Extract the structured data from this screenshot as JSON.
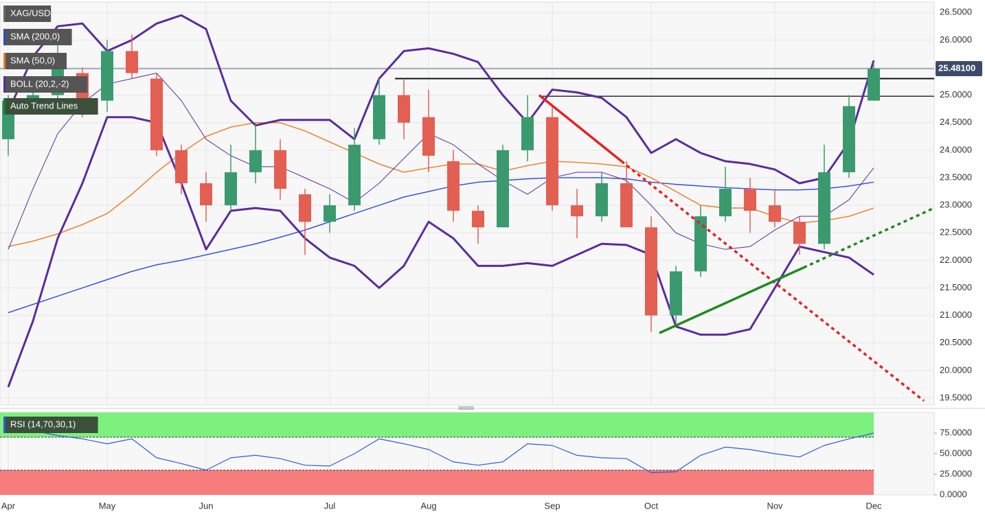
{
  "chart_data": {
    "type": "candlestick",
    "categories": [
      "Apr",
      null,
      null,
      null,
      "May",
      null,
      null,
      null,
      "Jun",
      null,
      null,
      null,
      null,
      "Jul",
      null,
      null,
      null,
      "Aug",
      null,
      null,
      null,
      null,
      "Sep",
      null,
      null,
      null,
      "Oct",
      null,
      null,
      null,
      null,
      "Nov",
      null,
      null,
      null,
      "Dec"
    ],
    "candles": {
      "name": "XAG/USD",
      "up_color": "#3a9a6e",
      "down_color": "#e35f52",
      "open": [
        24.2,
        24.9,
        25.0,
        25.4,
        24.9,
        25.8,
        25.3,
        24.0,
        23.4,
        23.0,
        23.6,
        24.0,
        23.2,
        22.7,
        23.0,
        24.2,
        25.0,
        24.6,
        23.8,
        22.9,
        22.6,
        24.0,
        24.6,
        23.0,
        22.8,
        23.4,
        22.6,
        21.0,
        21.8,
        22.8,
        23.3,
        23.0,
        22.7,
        22.3,
        23.6,
        24.9
      ],
      "high": [
        25.0,
        25.2,
        25.9,
        25.5,
        26.0,
        26.1,
        25.4,
        24.1,
        23.6,
        24.1,
        24.5,
        24.2,
        23.3,
        23.2,
        24.4,
        25.3,
        25.3,
        25.1,
        24.0,
        23.0,
        24.1,
        25.0,
        24.8,
        23.3,
        23.6,
        23.8,
        22.8,
        21.9,
        23.0,
        23.7,
        23.5,
        23.3,
        22.8,
        24.1,
        25.0,
        25.6
      ],
      "low": [
        23.9,
        24.7,
        24.8,
        24.6,
        24.7,
        25.3,
        23.9,
        23.2,
        22.7,
        22.9,
        23.4,
        23.1,
        22.1,
        22.5,
        22.9,
        24.1,
        24.2,
        23.6,
        22.7,
        22.3,
        22.6,
        23.8,
        22.9,
        22.4,
        22.7,
        22.7,
        20.7,
        20.8,
        21.7,
        22.7,
        22.5,
        22.6,
        22.1,
        22.2,
        23.5,
        24.9
      ],
      "close": [
        24.9,
        25.0,
        25.6,
        24.9,
        25.8,
        25.4,
        24.0,
        23.4,
        23.0,
        23.6,
        24.0,
        23.3,
        22.7,
        23.0,
        24.1,
        25.0,
        24.5,
        23.9,
        22.9,
        22.6,
        24.0,
        24.6,
        23.0,
        22.8,
        23.4,
        22.6,
        21.0,
        21.8,
        22.8,
        23.3,
        22.9,
        22.7,
        22.3,
        23.6,
        24.8,
        25.48
      ]
    },
    "lines": [
      {
        "name": "SMA (200,0)",
        "color": "#2846e8",
        "values": [
          21.05,
          21.2,
          21.35,
          21.5,
          21.65,
          21.8,
          21.92,
          22.0,
          22.1,
          22.2,
          22.3,
          22.42,
          22.55,
          22.7,
          22.85,
          23.0,
          23.15,
          23.25,
          23.35,
          23.42,
          23.45,
          23.48,
          23.5,
          23.5,
          23.5,
          23.48,
          23.42,
          23.38,
          23.35,
          23.32,
          23.3,
          23.28,
          23.28,
          23.3,
          23.35,
          23.42
        ]
      },
      {
        "name": "SMA (50,0)",
        "color": "#f07a1e",
        "values": [
          22.25,
          22.35,
          22.48,
          22.65,
          22.85,
          23.2,
          23.6,
          23.95,
          24.25,
          24.42,
          24.5,
          24.5,
          24.35,
          24.15,
          23.95,
          23.75,
          23.6,
          23.68,
          23.75,
          23.75,
          23.62,
          23.72,
          23.8,
          23.78,
          23.75,
          23.7,
          23.5,
          23.25,
          23.0,
          22.95,
          22.95,
          22.8,
          22.68,
          22.72,
          22.8,
          22.95
        ]
      }
    ],
    "bollinger": {
      "name": "BOLL (20,2,-2)",
      "color": "#5b2a9e",
      "upper": [
        24.7,
        25.7,
        26.25,
        26.3,
        25.8,
        26.0,
        26.3,
        26.45,
        26.2,
        24.9,
        24.45,
        24.55,
        24.55,
        24.55,
        24.2,
        25.3,
        25.8,
        25.85,
        25.75,
        25.6,
        25.0,
        24.5,
        25.1,
        25.05,
        24.95,
        24.6,
        23.95,
        24.2,
        23.95,
        23.8,
        23.75,
        23.65,
        23.4,
        23.5,
        24.15,
        25.63
      ],
      "middle": [
        22.2,
        23.3,
        24.3,
        24.85,
        25.2,
        25.3,
        25.4,
        24.9,
        24.2,
        23.9,
        23.7,
        23.7,
        23.5,
        23.3,
        23.05,
        23.4,
        23.85,
        24.3,
        24.1,
        23.75,
        23.45,
        23.2,
        23.5,
        23.6,
        23.6,
        23.45,
        23.0,
        22.5,
        22.3,
        22.2,
        22.25,
        22.55,
        22.8,
        22.8,
        23.1,
        23.68
      ],
      "lower": [
        19.7,
        20.9,
        22.4,
        23.4,
        24.6,
        24.6,
        24.5,
        23.4,
        22.2,
        22.9,
        22.95,
        22.9,
        22.4,
        22.05,
        21.9,
        21.5,
        21.9,
        22.7,
        22.4,
        21.9,
        21.9,
        21.95,
        21.9,
        22.1,
        22.3,
        22.28,
        22.1,
        20.8,
        20.65,
        20.65,
        20.75,
        21.5,
        22.25,
        22.15,
        22.05,
        21.74
      ]
    },
    "auto_trend_lines": {
      "name": "Auto Trend Lines",
      "color": "#1e7b2a",
      "lines": [
        {
          "color": "#e82020",
          "points": [
            {
              "x": 21.47,
              "y": 25.0
            },
            {
              "x": 24.8,
              "y": 23.8
            },
            {
              "x": 37.03,
              "y": 19.45
            }
          ]
        },
        {
          "color": "#1f8a1f",
          "points": [
            {
              "x": 26.33,
              "y": 20.68
            },
            {
              "x": 32.17,
              "y": 21.87
            },
            {
              "x": 37.44,
              "y": 22.95
            }
          ]
        }
      ]
    },
    "levels": [
      {
        "value": 25.3,
        "from": 15.64
      },
      {
        "value": 24.98,
        "from": 21.47
      }
    ],
    "last_price": {
      "value": 25.481,
      "label": "25.48100"
    },
    "ylim": [
      19.375,
      26.69
    ],
    "yticks": [
      {
        "value": 19.5,
        "label": "19.5000"
      },
      {
        "value": 20,
        "label": "20.0000"
      },
      {
        "value": 20.5,
        "label": "20.5000"
      },
      {
        "value": 21,
        "label": "21.0000"
      },
      {
        "value": 21.5,
        "label": "21.5000"
      },
      {
        "value": 22,
        "label": "22.0000"
      },
      {
        "value": 22.5,
        "label": "22.5000"
      },
      {
        "value": 23,
        "label": "23.0000"
      },
      {
        "value": 23.5,
        "label": "23.5000"
      },
      {
        "value": 24,
        "label": "24.0000"
      },
      {
        "value": 24.5,
        "label": "24.5000"
      },
      {
        "value": 25,
        "label": "25.0000"
      },
      {
        "value": 25.5,
        "label": "25.5000"
      },
      {
        "value": 26,
        "label": "26.0000"
      },
      {
        "value": 26.5,
        "label": "26.5000"
      }
    ],
    "grid": true,
    "rsi": {
      "name": "RSI (14,70,30,1)",
      "color": "#2a5ce0",
      "overbought": 70,
      "oversold": 30,
      "values": [
        82,
        78,
        72,
        68,
        62,
        68,
        45,
        38,
        30,
        45,
        48,
        44,
        36,
        35,
        50,
        68,
        62,
        55,
        40,
        36,
        40,
        62,
        60,
        48,
        45,
        44,
        27,
        28,
        48,
        58,
        55,
        50,
        46,
        60,
        68,
        75
      ],
      "ylim": [
        0,
        100
      ],
      "yticks": [
        {
          "value": 0,
          "label": "0.0000"
        },
        {
          "value": 25,
          "label": "25.0000"
        },
        {
          "value": 50,
          "label": "50.0000"
        },
        {
          "value": 75,
          "label": "75.0000"
        }
      ]
    }
  }
}
